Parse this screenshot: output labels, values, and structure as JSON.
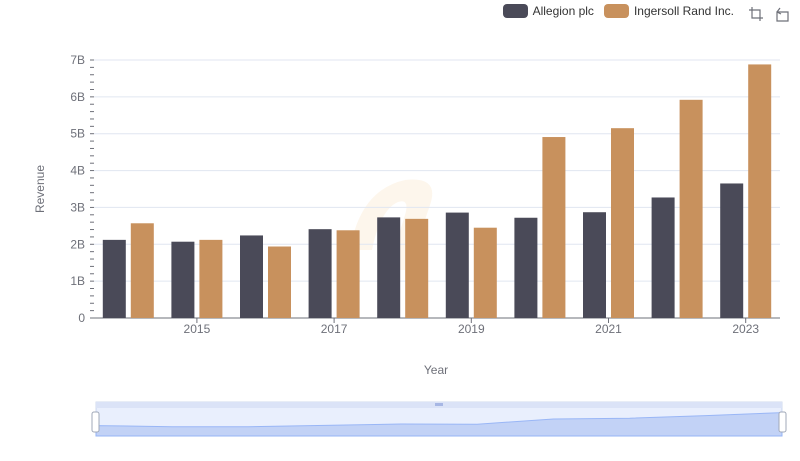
{
  "chart_data": {
    "type": "bar",
    "x": [
      2014,
      2015,
      2016,
      2017,
      2018,
      2019,
      2020,
      2021,
      2022,
      2023
    ],
    "series": [
      {
        "name": "Allegion plc",
        "color": "#4a4a58",
        "values": [
          2.12,
          2.07,
          2.24,
          2.41,
          2.73,
          2.86,
          2.72,
          2.87,
          3.27,
          3.65
        ]
      },
      {
        "name": "Ingersoll Rand Inc.",
        "color": "#c8915d",
        "values": [
          2.57,
          2.12,
          1.94,
          2.38,
          2.69,
          2.45,
          4.91,
          5.15,
          5.92,
          6.88
        ]
      }
    ],
    "xlabel": "Year",
    "ylabel": "Revenue",
    "ylim": [
      0,
      7
    ],
    "yticks": [
      "0",
      "1B",
      "2B",
      "3B",
      "4B",
      "5B",
      "6B",
      "7B"
    ],
    "xtick_labels": [
      "2015",
      "2017",
      "2019",
      "2021",
      "2023"
    ],
    "grid": true,
    "legend_position": "top-right"
  },
  "toolbox": {
    "zoom_icon": "zoom-select-icon",
    "reset_icon": "zoom-reset-icon"
  },
  "data_zoom": {
    "start_percent": 0,
    "end_percent": 100
  }
}
